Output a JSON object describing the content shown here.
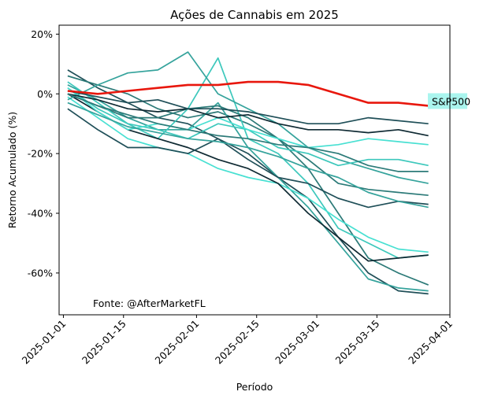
{
  "chart_data": {
    "type": "line",
    "title": "Ações de Cannabis em 2025",
    "xlabel": "Período",
    "ylabel": "Retorno Acumulado (%)",
    "xlim": [
      "2024-12-31",
      "2025-04-01"
    ],
    "ylim": [
      -74,
      23
    ],
    "x_ticks": [
      "2025-01-01",
      "2025-01-15",
      "2025-02-01",
      "2025-02-15",
      "2025-03-01",
      "2025-03-15",
      "2025-04-01"
    ],
    "y_ticks": [
      20,
      0,
      -20,
      -40,
      -60
    ],
    "y_tick_labels": [
      "20%",
      "0%",
      "-20%",
      "-40%",
      "-60%"
    ],
    "source_note": "Fonte: @AfterMarketFL",
    "grid": false,
    "legend": "none",
    "highlight_label": "S&P500",
    "colors": {
      "sp500": "#e8170d",
      "label_box": "#aaf5ee",
      "palette": [
        "#0f2a33",
        "#1f4f58",
        "#2c7a78",
        "#35a39c",
        "#3dc8bc",
        "#48e0d2"
      ]
    },
    "x": [
      "2025-01-02",
      "2025-01-09",
      "2025-01-16",
      "2025-01-23",
      "2025-01-30",
      "2025-02-06",
      "2025-02-13",
      "2025-02-20",
      "2025-02-27",
      "2025-03-06",
      "2025-03-13",
      "2025-03-20",
      "2025-03-27"
    ],
    "series": [
      {
        "values": [
          1,
          0,
          1,
          2,
          3,
          3,
          4,
          4,
          3,
          0,
          -3,
          -3,
          -4
        ],
        "highlight": true
      },
      {
        "values": [
          8,
          2,
          -3,
          -8,
          -10,
          -15,
          -20,
          -28,
          -35,
          -48,
          -60,
          -66,
          -67
        ]
      },
      {
        "values": [
          6,
          3,
          0,
          -5,
          -8,
          -6,
          -10,
          -15,
          -25,
          -40,
          -55,
          -60,
          -64
        ]
      },
      {
        "values": [
          3,
          -2,
          -8,
          -12,
          -12,
          -3,
          -18,
          -28,
          -38,
          -50,
          -62,
          -65,
          -66
        ]
      },
      {
        "values": [
          2,
          -5,
          -10,
          -15,
          -5,
          12,
          -15,
          -20,
          -30,
          -45,
          -50,
          -55,
          -54
        ]
      },
      {
        "values": [
          -1,
          -8,
          -15,
          -18,
          -20,
          -25,
          -28,
          -30,
          -35,
          -42,
          -48,
          -52,
          -53
        ]
      },
      {
        "values": [
          0,
          -6,
          -12,
          -15,
          -18,
          -22,
          -25,
          -30,
          -40,
          -48,
          -56,
          -55,
          -54
        ]
      },
      {
        "values": [
          -5,
          -12,
          -18,
          -18,
          -20,
          -15,
          -22,
          -28,
          -30,
          -35,
          -38,
          -36,
          -37
        ]
      },
      {
        "values": [
          0,
          -4,
          -8,
          -8,
          -5,
          -4,
          -8,
          -15,
          -22,
          -30,
          -32,
          -33,
          -34
        ]
      },
      {
        "values": [
          -2,
          3,
          7,
          8,
          14,
          0,
          -5,
          -10,
          -18,
          -22,
          -25,
          -28,
          -30
        ]
      },
      {
        "values": [
          4,
          -3,
          -10,
          -12,
          -15,
          -10,
          -12,
          -18,
          -20,
          -24,
          -22,
          -22,
          -24
        ]
      },
      {
        "values": [
          2,
          -6,
          -12,
          -10,
          -12,
          -8,
          -12,
          -15,
          -18,
          -17,
          -15,
          -16,
          -17
        ]
      },
      {
        "values": [
          0,
          -2,
          -5,
          -6,
          -5,
          -8,
          -7,
          -10,
          -12,
          -12,
          -13,
          -12,
          -14
        ]
      },
      {
        "values": [
          1,
          -1,
          -3,
          -2,
          -5,
          -5,
          -6,
          -8,
          -10,
          -10,
          -8,
          -9,
          -10
        ]
      },
      {
        "values": [
          0,
          -4,
          -7,
          -10,
          -12,
          -14,
          -15,
          -17,
          -18,
          -20,
          -24,
          -26,
          -26
        ]
      },
      {
        "values": [
          -3,
          -7,
          -11,
          -13,
          -15,
          -16,
          -18,
          -21,
          -25,
          -28,
          -33,
          -36,
          -38
        ]
      }
    ]
  }
}
